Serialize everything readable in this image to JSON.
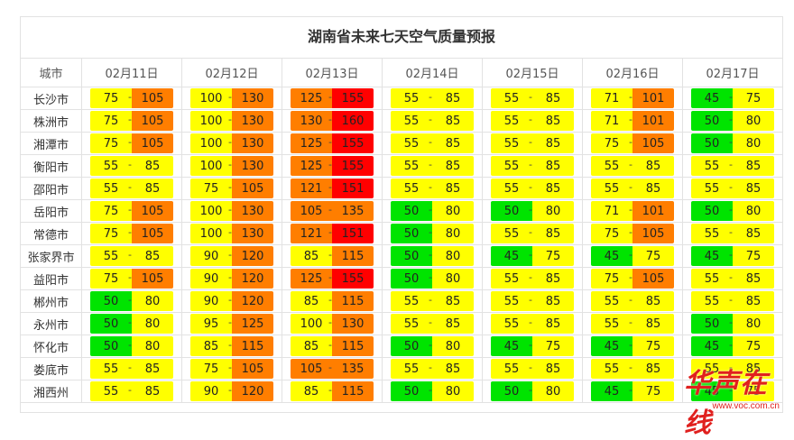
{
  "title": "湖南省未来七天空气质量预报",
  "header": {
    "city": "城市",
    "dates": [
      "02月11日",
      "02月12日",
      "02月13日",
      "02月14日",
      "02月15日",
      "02月16日",
      "02月17日"
    ]
  },
  "colors": {
    "y": "#ffff00",
    "g": "#00e400",
    "o": "#ff7e00",
    "r": "#ff0000"
  },
  "rows": [
    {
      "city": "长沙市",
      "cells": [
        {
          "lo": "75",
          "hi": "105",
          "lc": "y",
          "hc": "o"
        },
        {
          "lo": "100",
          "hi": "130",
          "lc": "y",
          "hc": "o"
        },
        {
          "lo": "125",
          "hi": "155",
          "lc": "o",
          "hc": "r"
        },
        {
          "lo": "55",
          "hi": "85",
          "lc": "y",
          "hc": "y"
        },
        {
          "lo": "55",
          "hi": "85",
          "lc": "y",
          "hc": "y"
        },
        {
          "lo": "71",
          "hi": "101",
          "lc": "y",
          "hc": "o"
        },
        {
          "lo": "45",
          "hi": "75",
          "lc": "g",
          "hc": "y"
        }
      ]
    },
    {
      "city": "株洲市",
      "cells": [
        {
          "lo": "75",
          "hi": "105",
          "lc": "y",
          "hc": "o"
        },
        {
          "lo": "100",
          "hi": "130",
          "lc": "y",
          "hc": "o"
        },
        {
          "lo": "130",
          "hi": "160",
          "lc": "o",
          "hc": "r"
        },
        {
          "lo": "55",
          "hi": "85",
          "lc": "y",
          "hc": "y"
        },
        {
          "lo": "55",
          "hi": "85",
          "lc": "y",
          "hc": "y"
        },
        {
          "lo": "71",
          "hi": "101",
          "lc": "y",
          "hc": "o"
        },
        {
          "lo": "50",
          "hi": "80",
          "lc": "g",
          "hc": "y"
        }
      ]
    },
    {
      "city": "湘潭市",
      "cells": [
        {
          "lo": "75",
          "hi": "105",
          "lc": "y",
          "hc": "o"
        },
        {
          "lo": "100",
          "hi": "130",
          "lc": "y",
          "hc": "o"
        },
        {
          "lo": "125",
          "hi": "155",
          "lc": "o",
          "hc": "r"
        },
        {
          "lo": "55",
          "hi": "85",
          "lc": "y",
          "hc": "y"
        },
        {
          "lo": "55",
          "hi": "85",
          "lc": "y",
          "hc": "y"
        },
        {
          "lo": "75",
          "hi": "105",
          "lc": "y",
          "hc": "o"
        },
        {
          "lo": "50",
          "hi": "80",
          "lc": "g",
          "hc": "y"
        }
      ]
    },
    {
      "city": "衡阳市",
      "cells": [
        {
          "lo": "55",
          "hi": "85",
          "lc": "y",
          "hc": "y"
        },
        {
          "lo": "100",
          "hi": "130",
          "lc": "y",
          "hc": "o"
        },
        {
          "lo": "125",
          "hi": "155",
          "lc": "o",
          "hc": "r"
        },
        {
          "lo": "55",
          "hi": "85",
          "lc": "y",
          "hc": "y"
        },
        {
          "lo": "55",
          "hi": "85",
          "lc": "y",
          "hc": "y"
        },
        {
          "lo": "55",
          "hi": "85",
          "lc": "y",
          "hc": "y"
        },
        {
          "lo": "55",
          "hi": "85",
          "lc": "y",
          "hc": "y"
        }
      ]
    },
    {
      "city": "邵阳市",
      "cells": [
        {
          "lo": "55",
          "hi": "85",
          "lc": "y",
          "hc": "y"
        },
        {
          "lo": "75",
          "hi": "105",
          "lc": "y",
          "hc": "o"
        },
        {
          "lo": "121",
          "hi": "151",
          "lc": "o",
          "hc": "r"
        },
        {
          "lo": "55",
          "hi": "85",
          "lc": "y",
          "hc": "y"
        },
        {
          "lo": "55",
          "hi": "85",
          "lc": "y",
          "hc": "y"
        },
        {
          "lo": "55",
          "hi": "85",
          "lc": "y",
          "hc": "y"
        },
        {
          "lo": "55",
          "hi": "85",
          "lc": "y",
          "hc": "y"
        }
      ]
    },
    {
      "city": "岳阳市",
      "cells": [
        {
          "lo": "75",
          "hi": "105",
          "lc": "y",
          "hc": "o"
        },
        {
          "lo": "100",
          "hi": "130",
          "lc": "y",
          "hc": "o"
        },
        {
          "lo": "105",
          "hi": "135",
          "lc": "o",
          "hc": "o"
        },
        {
          "lo": "50",
          "hi": "80",
          "lc": "g",
          "hc": "y"
        },
        {
          "lo": "50",
          "hi": "80",
          "lc": "g",
          "hc": "y"
        },
        {
          "lo": "71",
          "hi": "101",
          "lc": "y",
          "hc": "o"
        },
        {
          "lo": "50",
          "hi": "80",
          "lc": "g",
          "hc": "y"
        }
      ]
    },
    {
      "city": "常德市",
      "cells": [
        {
          "lo": "75",
          "hi": "105",
          "lc": "y",
          "hc": "o"
        },
        {
          "lo": "100",
          "hi": "130",
          "lc": "y",
          "hc": "o"
        },
        {
          "lo": "121",
          "hi": "151",
          "lc": "o",
          "hc": "r"
        },
        {
          "lo": "50",
          "hi": "80",
          "lc": "g",
          "hc": "y"
        },
        {
          "lo": "55",
          "hi": "85",
          "lc": "y",
          "hc": "y"
        },
        {
          "lo": "75",
          "hi": "105",
          "lc": "y",
          "hc": "o"
        },
        {
          "lo": "55",
          "hi": "85",
          "lc": "y",
          "hc": "y"
        }
      ]
    },
    {
      "city": "张家界市",
      "cells": [
        {
          "lo": "55",
          "hi": "85",
          "lc": "y",
          "hc": "y"
        },
        {
          "lo": "90",
          "hi": "120",
          "lc": "y",
          "hc": "o"
        },
        {
          "lo": "85",
          "hi": "115",
          "lc": "y",
          "hc": "o"
        },
        {
          "lo": "50",
          "hi": "80",
          "lc": "g",
          "hc": "y"
        },
        {
          "lo": "45",
          "hi": "75",
          "lc": "g",
          "hc": "y"
        },
        {
          "lo": "45",
          "hi": "75",
          "lc": "g",
          "hc": "y"
        },
        {
          "lo": "45",
          "hi": "75",
          "lc": "g",
          "hc": "y"
        }
      ]
    },
    {
      "city": "益阳市",
      "cells": [
        {
          "lo": "75",
          "hi": "105",
          "lc": "y",
          "hc": "o"
        },
        {
          "lo": "90",
          "hi": "120",
          "lc": "y",
          "hc": "o"
        },
        {
          "lo": "125",
          "hi": "155",
          "lc": "o",
          "hc": "r"
        },
        {
          "lo": "50",
          "hi": "80",
          "lc": "g",
          "hc": "y"
        },
        {
          "lo": "55",
          "hi": "85",
          "lc": "y",
          "hc": "y"
        },
        {
          "lo": "75",
          "hi": "105",
          "lc": "y",
          "hc": "o"
        },
        {
          "lo": "55",
          "hi": "85",
          "lc": "y",
          "hc": "y"
        }
      ]
    },
    {
      "city": "郴州市",
      "cells": [
        {
          "lo": "50",
          "hi": "80",
          "lc": "g",
          "hc": "y"
        },
        {
          "lo": "90",
          "hi": "120",
          "lc": "y",
          "hc": "o"
        },
        {
          "lo": "85",
          "hi": "115",
          "lc": "y",
          "hc": "o"
        },
        {
          "lo": "55",
          "hi": "85",
          "lc": "y",
          "hc": "y"
        },
        {
          "lo": "55",
          "hi": "85",
          "lc": "y",
          "hc": "y"
        },
        {
          "lo": "55",
          "hi": "85",
          "lc": "y",
          "hc": "y"
        },
        {
          "lo": "55",
          "hi": "85",
          "lc": "y",
          "hc": "y"
        }
      ]
    },
    {
      "city": "永州市",
      "cells": [
        {
          "lo": "50",
          "hi": "80",
          "lc": "g",
          "hc": "y"
        },
        {
          "lo": "95",
          "hi": "125",
          "lc": "y",
          "hc": "o"
        },
        {
          "lo": "100",
          "hi": "130",
          "lc": "y",
          "hc": "o"
        },
        {
          "lo": "55",
          "hi": "85",
          "lc": "y",
          "hc": "y"
        },
        {
          "lo": "55",
          "hi": "85",
          "lc": "y",
          "hc": "y"
        },
        {
          "lo": "55",
          "hi": "85",
          "lc": "y",
          "hc": "y"
        },
        {
          "lo": "50",
          "hi": "80",
          "lc": "g",
          "hc": "y"
        }
      ]
    },
    {
      "city": "怀化市",
      "cells": [
        {
          "lo": "50",
          "hi": "80",
          "lc": "g",
          "hc": "y"
        },
        {
          "lo": "85",
          "hi": "115",
          "lc": "y",
          "hc": "o"
        },
        {
          "lo": "85",
          "hi": "115",
          "lc": "y",
          "hc": "o"
        },
        {
          "lo": "50",
          "hi": "80",
          "lc": "g",
          "hc": "y"
        },
        {
          "lo": "45",
          "hi": "75",
          "lc": "g",
          "hc": "y"
        },
        {
          "lo": "45",
          "hi": "75",
          "lc": "g",
          "hc": "y"
        },
        {
          "lo": "45",
          "hi": "75",
          "lc": "g",
          "hc": "y"
        }
      ]
    },
    {
      "city": "娄底市",
      "cells": [
        {
          "lo": "55",
          "hi": "85",
          "lc": "y",
          "hc": "y"
        },
        {
          "lo": "75",
          "hi": "105",
          "lc": "y",
          "hc": "o"
        },
        {
          "lo": "105",
          "hi": "135",
          "lc": "o",
          "hc": "o"
        },
        {
          "lo": "55",
          "hi": "85",
          "lc": "y",
          "hc": "y"
        },
        {
          "lo": "55",
          "hi": "85",
          "lc": "y",
          "hc": "y"
        },
        {
          "lo": "55",
          "hi": "85",
          "lc": "y",
          "hc": "y"
        },
        {
          "lo": "55",
          "hi": "85",
          "lc": "y",
          "hc": "y"
        }
      ]
    },
    {
      "city": "湘西州",
      "cells": [
        {
          "lo": "55",
          "hi": "85",
          "lc": "y",
          "hc": "y"
        },
        {
          "lo": "90",
          "hi": "120",
          "lc": "y",
          "hc": "o"
        },
        {
          "lo": "85",
          "hi": "115",
          "lc": "y",
          "hc": "o"
        },
        {
          "lo": "50",
          "hi": "80",
          "lc": "g",
          "hc": "y"
        },
        {
          "lo": "50",
          "hi": "80",
          "lc": "g",
          "hc": "y"
        },
        {
          "lo": "45",
          "hi": "75",
          "lc": "g",
          "hc": "y"
        },
        {
          "lo": "45",
          "hi": "75",
          "lc": "g",
          "hc": "y"
        }
      ]
    }
  ],
  "watermark": {
    "name": "华声在线",
    "url": "www.voc.com.cn"
  }
}
